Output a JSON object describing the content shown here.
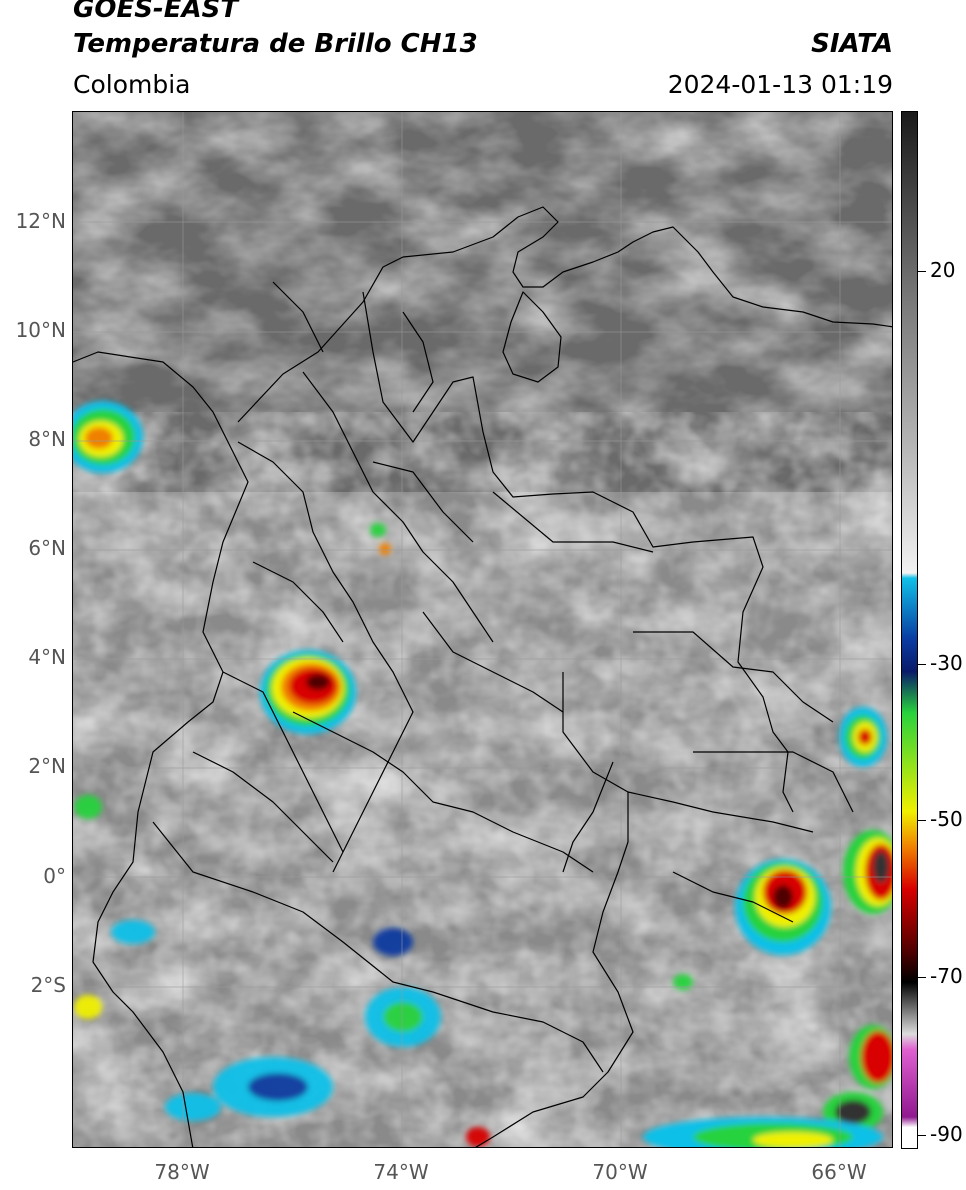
{
  "header": {
    "title_line1": "GOES-EAST",
    "title_line2": "Temperatura de Brillo CH13",
    "source": "SIATA",
    "region": "Colombia",
    "datetime": "2024-01-13 01:19"
  },
  "axes": {
    "latitude_labels": [
      "12°N",
      "10°N",
      "8°N",
      "6°N",
      "4°N",
      "2°N",
      "0°",
      "2°S"
    ],
    "longitude_labels": [
      "78°W",
      "74°W",
      "70°W",
      "66°W"
    ]
  },
  "colorbar": {
    "tick_labels": [
      "20",
      "-30",
      "-50",
      "-70",
      "-90"
    ],
    "range_c": [
      -92,
      37
    ],
    "colors": {
      "warm_gray_dark": "#1a1a1a",
      "warm_gray_light": "#f2f2f2",
      "cyan": "#10c0e8",
      "blue": "#0a3aa0",
      "navy": "#0a1a6a",
      "green": "#28d23c",
      "yellow": "#f0f000",
      "orange": "#f08000",
      "red": "#d80000",
      "dark_red": "#500000",
      "black": "#000000",
      "magenta": "#e060d0",
      "purple": "#901890"
    }
  }
}
